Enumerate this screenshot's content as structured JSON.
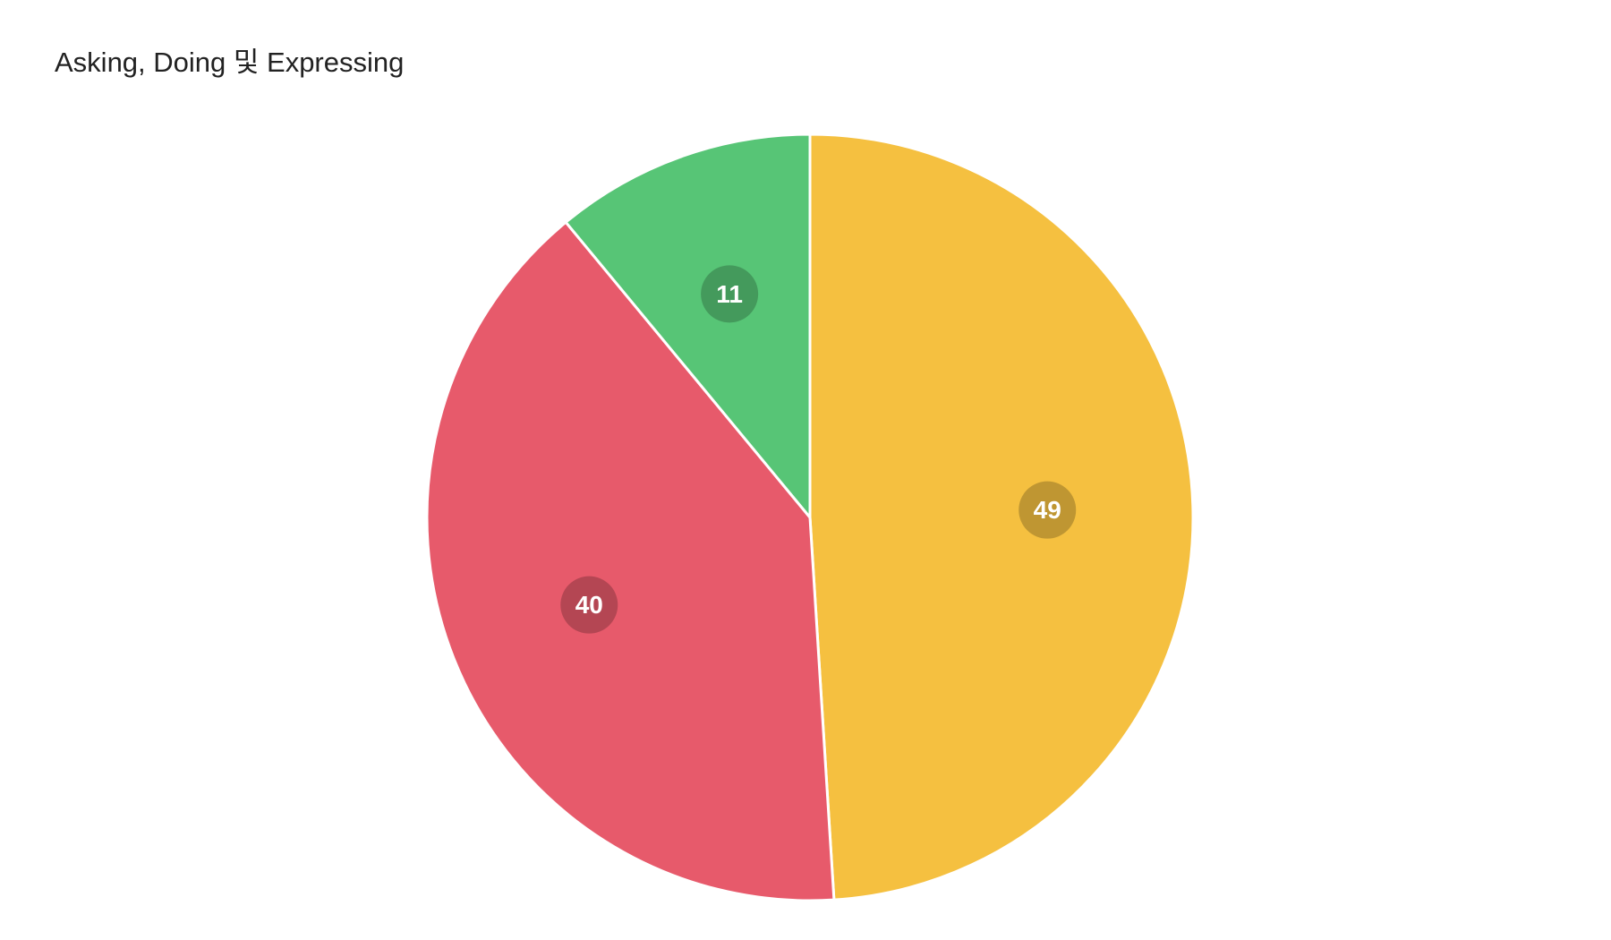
{
  "chart_data": {
    "type": "pie",
    "title": "Asking, Doing 및 Expressing",
    "series": [
      {
        "values": [
          49,
          40,
          11
        ],
        "colors": [
          "#f5c040",
          "#e75a6b",
          "#57c576"
        ]
      }
    ]
  }
}
